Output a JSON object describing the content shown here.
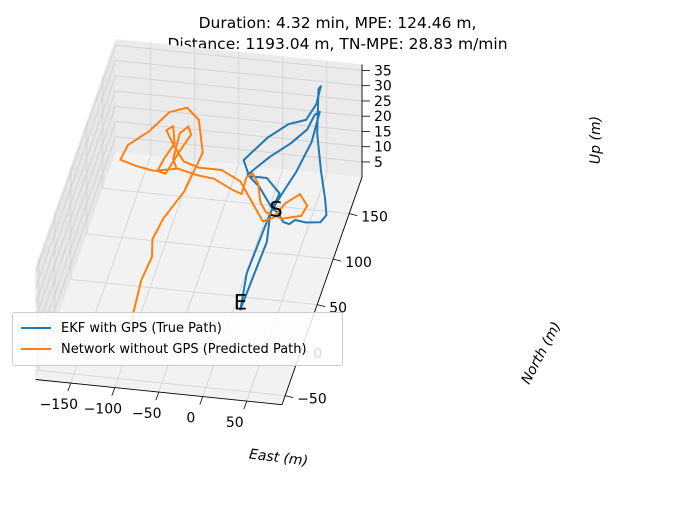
{
  "title_line1": "Duration: 4.32 min, MPE: 124.46 m,",
  "title_line2": "Distance: 1193.04 m, TN-MPE: 28.83 m/min",
  "chart_data": {
    "type": "line",
    "projection": "3d",
    "xlabel": "East (m)",
    "ylabel": "North (m)",
    "zlabel": "Up (m)",
    "xticks": [
      -150,
      -100,
      -50,
      0,
      50
    ],
    "yticks": [
      -50,
      0,
      50,
      100,
      150
    ],
    "zticks": [
      5,
      10,
      15,
      20,
      25,
      30,
      35
    ],
    "xlim": [
      -190,
      90
    ],
    "ylim": [
      -60,
      190
    ],
    "zlim": [
      0,
      37
    ],
    "grid": true,
    "legend_position": "center-left",
    "markers": [
      {
        "text": "S",
        "x": 25,
        "y": 100,
        "z": 12
      },
      {
        "text": "E",
        "x": 10,
        "y": 30,
        "z": 2
      }
    ],
    "series": [
      {
        "name": "EKF with GPS (True Path)",
        "color": "#1f77b4",
        "points": [
          [
            15,
            110,
            10
          ],
          [
            10,
            50,
            8
          ],
          [
            10,
            30,
            2
          ],
          [
            15,
            60,
            5
          ],
          [
            20,
            85,
            8
          ],
          [
            15,
            110,
            10
          ],
          [
            20,
            125,
            12
          ],
          [
            0,
            140,
            12
          ],
          [
            -20,
            140,
            12
          ],
          [
            -30,
            150,
            14
          ],
          [
            -10,
            170,
            16
          ],
          [
            10,
            180,
            18
          ],
          [
            30,
            180,
            20
          ],
          [
            40,
            185,
            24
          ],
          [
            45,
            185,
            30
          ],
          [
            46,
            175,
            32
          ],
          [
            50,
            160,
            22
          ],
          [
            60,
            145,
            14
          ],
          [
            70,
            130,
            10
          ],
          [
            75,
            120,
            8
          ],
          [
            70,
            115,
            7
          ],
          [
            55,
            110,
            8
          ],
          [
            45,
            105,
            10
          ],
          [
            40,
            100,
            10
          ],
          [
            35,
            95,
            12
          ],
          [
            30,
            100,
            12
          ],
          [
            25,
            110,
            10
          ],
          [
            15,
            115,
            10
          ],
          [
            -5,
            130,
            12
          ],
          [
            -20,
            135,
            14
          ],
          [
            0,
            150,
            16
          ],
          [
            20,
            160,
            18
          ],
          [
            35,
            170,
            20
          ],
          [
            40,
            180,
            22
          ],
          [
            42,
            190,
            20
          ],
          [
            40,
            170,
            16
          ],
          [
            30,
            150,
            12
          ],
          [
            20,
            130,
            10
          ],
          [
            15,
            110,
            10
          ]
        ]
      },
      {
        "name": "Network without GPS (Predicted Path)",
        "color": "#ff7f0e",
        "points": [
          [
            -110,
            20,
            -2
          ],
          [
            -110,
            50,
            2
          ],
          [
            -105,
            70,
            4
          ],
          [
            -110,
            85,
            5
          ],
          [
            -105,
            105,
            6
          ],
          [
            -90,
            130,
            8
          ],
          [
            -80,
            160,
            12
          ],
          [
            -90,
            175,
            18
          ],
          [
            -105,
            180,
            20
          ],
          [
            -125,
            180,
            18
          ],
          [
            -145,
            170,
            14
          ],
          [
            -165,
            160,
            12
          ],
          [
            -170,
            150,
            10
          ],
          [
            -150,
            145,
            10
          ],
          [
            -130,
            145,
            9
          ],
          [
            -105,
            150,
            9
          ],
          [
            -80,
            145,
            9
          ],
          [
            -60,
            140,
            10
          ],
          [
            -35,
            130,
            10
          ],
          [
            -25,
            130,
            9
          ],
          [
            -25,
            145,
            10
          ],
          [
            -20,
            150,
            10
          ],
          [
            -10,
            140,
            10
          ],
          [
            0,
            120,
            10
          ],
          [
            10,
            110,
            10
          ],
          [
            30,
            105,
            10
          ],
          [
            50,
            110,
            10
          ],
          [
            55,
            115,
            12
          ],
          [
            45,
            120,
            14
          ],
          [
            30,
            115,
            12
          ],
          [
            20,
            105,
            10
          ],
          [
            10,
            100,
            10
          ],
          [
            -10,
            120,
            10
          ],
          [
            -30,
            140,
            10
          ],
          [
            -55,
            150,
            10
          ],
          [
            -80,
            150,
            10
          ],
          [
            -100,
            155,
            10
          ],
          [
            -115,
            165,
            12
          ],
          [
            -125,
            170,
            15
          ],
          [
            -118,
            172,
            16
          ],
          [
            -112,
            160,
            14
          ],
          [
            -120,
            150,
            12
          ],
          [
            -125,
            142,
            10
          ],
          [
            -115,
            140,
            10
          ],
          [
            -105,
            155,
            13
          ],
          [
            -95,
            165,
            16
          ],
          [
            -100,
            170,
            17
          ],
          [
            -108,
            165,
            16
          ],
          [
            -110,
            150,
            12
          ],
          [
            -105,
            145,
            11
          ]
        ]
      }
    ]
  }
}
